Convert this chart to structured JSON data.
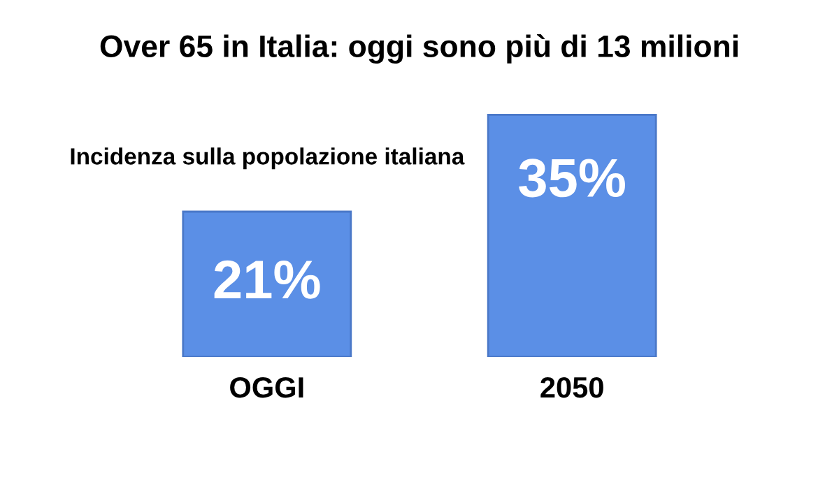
{
  "chart_data": {
    "type": "bar",
    "title": "Over 65 in Italia: oggi sono più di 13 milioni",
    "annotations": [
      "Incidenza sulla popolazione italiana"
    ],
    "categories": [
      "OGGI",
      "2050"
    ],
    "values": [
      21,
      35
    ],
    "value_labels": [
      "21%",
      "35%"
    ],
    "color": "#5b8fe6"
  }
}
